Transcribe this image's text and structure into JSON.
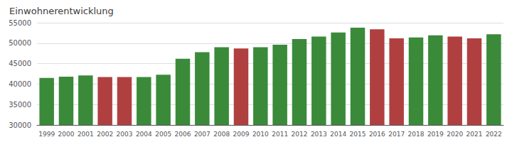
{
  "chart_data": {
    "type": "bar",
    "title": "Einwohnerentwicklung",
    "categories": [
      "1999",
      "2000",
      "2001",
      "2002",
      "2003",
      "2004",
      "2005",
      "2006",
      "2007",
      "2008",
      "2009",
      "2010",
      "2011",
      "2012",
      "2013",
      "2014",
      "2015",
      "2016",
      "2017",
      "2018",
      "2019",
      "2020",
      "2021",
      "2022"
    ],
    "values": [
      41500,
      41800,
      42100,
      41700,
      41700,
      41700,
      42300,
      46200,
      47800,
      49000,
      48700,
      49000,
      49600,
      51000,
      51600,
      52600,
      53800,
      53400,
      51200,
      51400,
      51900,
      51600,
      51200,
      52200
    ],
    "colors": [
      "#3a8a3a",
      "#3a8a3a",
      "#3a8a3a",
      "#b04040",
      "#b04040",
      "#3a8a3a",
      "#3a8a3a",
      "#3a8a3a",
      "#3a8a3a",
      "#3a8a3a",
      "#b04040",
      "#3a8a3a",
      "#3a8a3a",
      "#3a8a3a",
      "#3a8a3a",
      "#3a8a3a",
      "#3a8a3a",
      "#b04040",
      "#b04040",
      "#3a8a3a",
      "#3a8a3a",
      "#b04040",
      "#b04040",
      "#3a8a3a"
    ],
    "ylim": [
      30000,
      55000
    ],
    "yticks": [
      30000,
      35000,
      40000,
      45000,
      50000,
      55000
    ],
    "grid": true
  }
}
